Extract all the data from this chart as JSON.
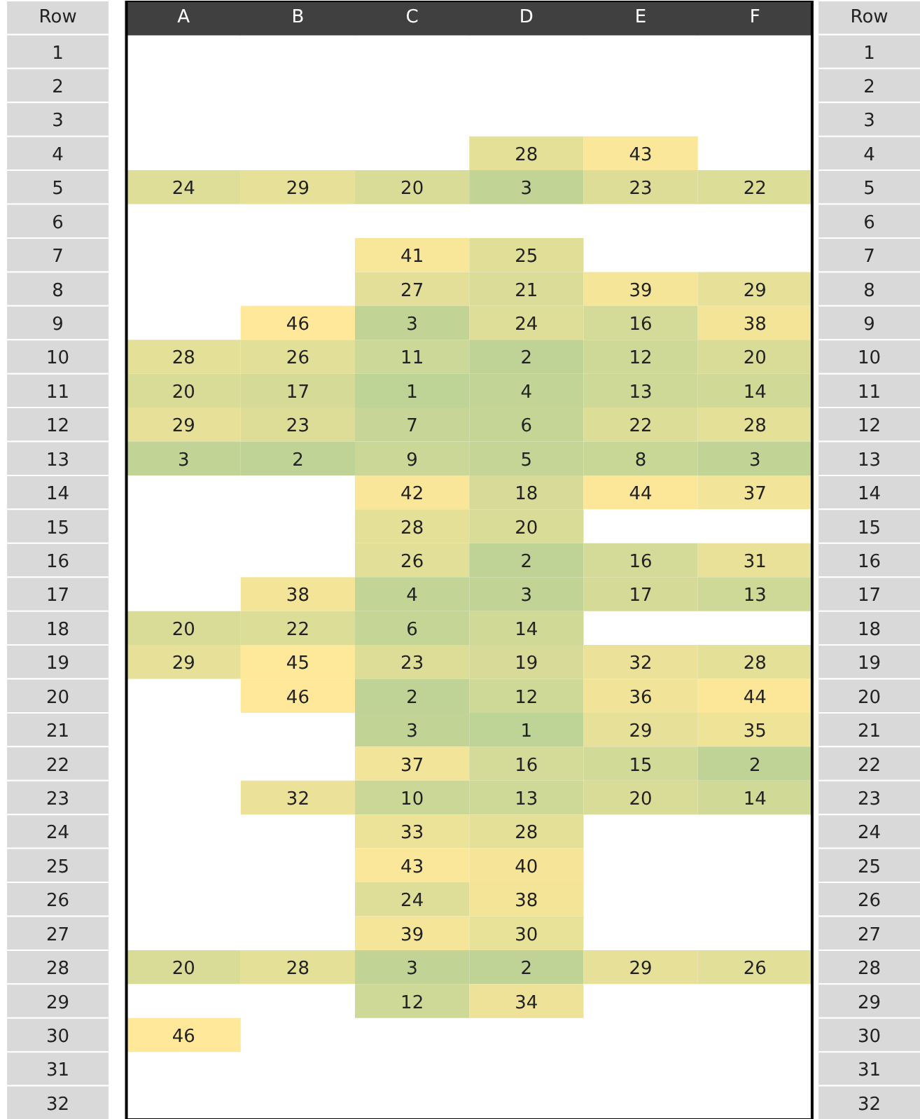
{
  "chart_data": {
    "type": "heatmap",
    "ylabel": "Row",
    "y2label": "Row",
    "data_labels": true,
    "categories": [
      "A",
      "B",
      "C",
      "D",
      "E",
      "F"
    ],
    "y_categories": [
      "1",
      "2",
      "3",
      "4",
      "5",
      "6",
      "7",
      "8",
      "9",
      "10",
      "11",
      "12",
      "13",
      "14",
      "15",
      "16",
      "17",
      "18",
      "19",
      "20",
      "21",
      "22",
      "23",
      "24",
      "25",
      "26",
      "27",
      "28",
      "29",
      "30",
      "31",
      "32"
    ],
    "y2_categories": [
      "1",
      "2",
      "3",
      "4",
      "5",
      "6",
      "7",
      "8",
      "9",
      "10",
      "11",
      "12",
      "13",
      "14",
      "15",
      "16",
      "17",
      "18",
      "19",
      "20",
      "21",
      "22",
      "23",
      "24",
      "25",
      "26",
      "27",
      "28",
      "29",
      "30",
      "31",
      "32"
    ],
    "cells": [
      [
        null,
        null,
        null,
        null,
        null,
        null
      ],
      [
        null,
        null,
        null,
        null,
        null,
        null
      ],
      [
        null,
        null,
        null,
        null,
        null,
        null
      ],
      [
        null,
        null,
        null,
        28,
        43,
        null
      ],
      [
        24,
        29,
        20,
        3,
        23,
        22
      ],
      [
        null,
        null,
        null,
        null,
        null,
        null
      ],
      [
        null,
        null,
        41,
        25,
        null,
        null
      ],
      [
        null,
        null,
        27,
        21,
        39,
        29
      ],
      [
        null,
        46,
        3,
        24,
        16,
        38
      ],
      [
        28,
        26,
        11,
        2,
        12,
        20
      ],
      [
        20,
        17,
        1,
        4,
        13,
        14
      ],
      [
        29,
        23,
        7,
        6,
        22,
        28
      ],
      [
        3,
        2,
        9,
        5,
        8,
        3
      ],
      [
        null,
        null,
        42,
        18,
        44,
        37
      ],
      [
        null,
        null,
        28,
        20,
        null,
        null
      ],
      [
        null,
        null,
        26,
        2,
        16,
        31
      ],
      [
        null,
        38,
        4,
        3,
        17,
        13
      ],
      [
        20,
        22,
        6,
        14,
        null,
        null
      ],
      [
        29,
        45,
        23,
        19,
        32,
        28
      ],
      [
        null,
        46,
        2,
        12,
        36,
        44
      ],
      [
        null,
        null,
        3,
        1,
        29,
        35
      ],
      [
        null,
        null,
        37,
        16,
        15,
        2
      ],
      [
        null,
        32,
        10,
        13,
        20,
        14
      ],
      [
        null,
        null,
        33,
        28,
        null,
        null
      ],
      [
        null,
        null,
        43,
        40,
        null,
        null
      ],
      [
        null,
        null,
        24,
        38,
        null,
        null
      ],
      [
        null,
        null,
        39,
        30,
        null,
        null
      ],
      [
        20,
        28,
        3,
        2,
        29,
        26
      ],
      [
        null,
        null,
        12,
        34,
        null,
        null
      ],
      [
        46,
        null,
        null,
        null,
        null,
        null
      ],
      [
        null,
        null,
        null,
        null,
        null,
        null
      ],
      [
        null,
        null,
        null,
        null,
        null,
        null
      ]
    ]
  }
}
